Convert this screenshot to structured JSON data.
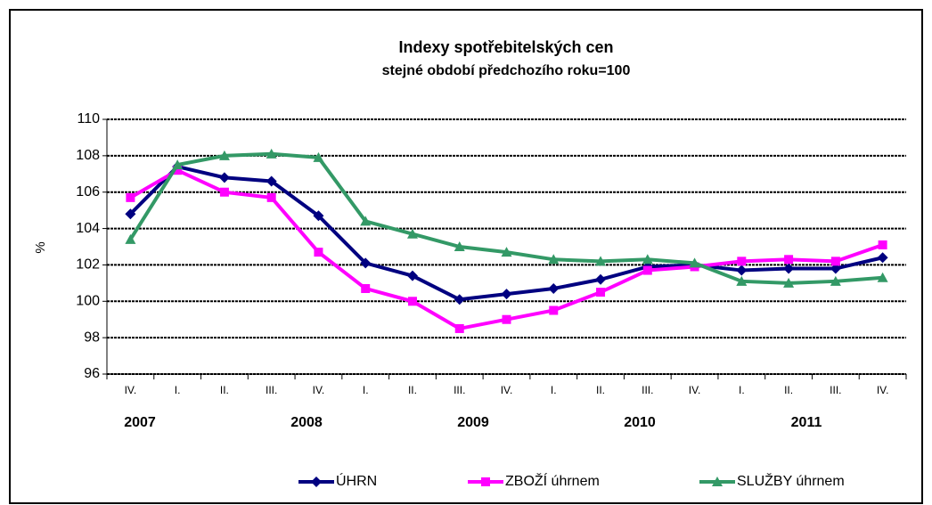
{
  "chart_data": {
    "type": "line",
    "title": "Indexy spotřebitelských  cen",
    "subtitle": "stejné období předchozího roku=100",
    "y_label": "%",
    "categories": [
      "IV.",
      "I.",
      "II.",
      "III.",
      "IV.",
      "I.",
      "II.",
      "III.",
      "IV.",
      "I.",
      "II.",
      "III.",
      "IV.",
      "I.",
      "II.",
      "III.",
      "IV."
    ],
    "years": [
      "2007",
      "2008",
      "2009",
      "2010",
      "2011"
    ],
    "ylim": [
      96,
      110
    ],
    "yticks": [
      96,
      98,
      100,
      102,
      104,
      106,
      108,
      110
    ],
    "grid": true,
    "legend": "bottom",
    "series": [
      {
        "name": "ÚHRN",
        "color": "#000080",
        "marker": "diamond",
        "values": [
          104.8,
          107.4,
          106.8,
          106.6,
          104.7,
          102.1,
          101.4,
          100.1,
          100.4,
          100.7,
          101.2,
          101.9,
          102.0,
          101.7,
          101.8,
          101.8,
          102.4
        ]
      },
      {
        "name": "ZBOŽÍ úhrnem",
        "color": "#ff00ff",
        "marker": "square",
        "values": [
          105.7,
          107.2,
          106.0,
          105.7,
          102.7,
          100.7,
          100.0,
          98.5,
          99.0,
          99.5,
          100.5,
          101.7,
          101.9,
          102.2,
          102.3,
          102.2,
          103.1
        ]
      },
      {
        "name": "SLUŽBY úhrnem",
        "color": "#339966",
        "marker": "triangle",
        "values": [
          103.4,
          107.5,
          108.0,
          108.1,
          107.9,
          104.4,
          103.7,
          103.0,
          102.7,
          102.3,
          102.2,
          102.3,
          102.1,
          101.1,
          101.0,
          101.1,
          101.3
        ]
      }
    ]
  }
}
